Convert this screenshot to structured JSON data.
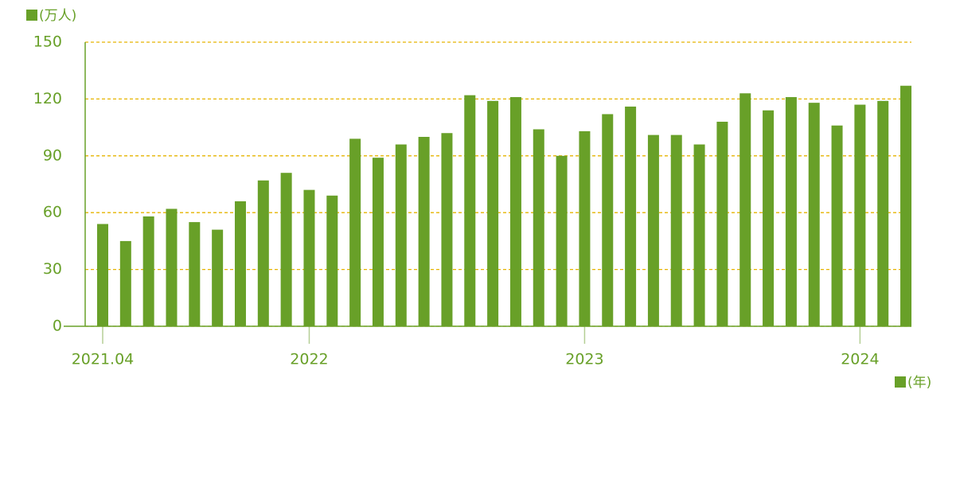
{
  "chart_data": {
    "type": "bar",
    "y_label": "(万人)",
    "x_label": "(年)",
    "categories": [
      "2021.04",
      null,
      null,
      null,
      null,
      null,
      null,
      null,
      null,
      "2022",
      null,
      null,
      null,
      null,
      null,
      null,
      null,
      null,
      null,
      null,
      null,
      "2023",
      null,
      null,
      null,
      null,
      null,
      null,
      null,
      null,
      null,
      null,
      null,
      "2024",
      null,
      null
    ],
    "values": [
      54,
      45,
      58,
      62,
      55,
      51,
      66,
      77,
      81,
      72,
      69,
      99,
      89,
      96,
      100,
      102,
      122,
      119,
      121,
      104,
      90,
      103,
      112,
      116,
      101,
      101,
      96,
      108,
      123,
      114,
      121,
      118,
      106,
      117,
      119,
      127
    ],
    "color": "#68a028",
    "ylim": [
      0,
      150
    ],
    "yticks": [
      0,
      30,
      60,
      90,
      120,
      150
    ],
    "grid": true
  }
}
